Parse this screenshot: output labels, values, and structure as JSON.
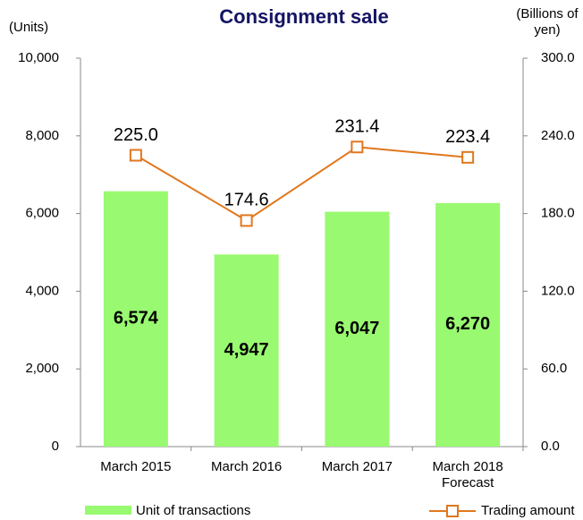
{
  "chart_data": {
    "type": "bar",
    "title": "Consignment sale",
    "y_label": "(Units)",
    "y2_label": "(Billions of yen)",
    "categories": [
      "March 2015",
      "March 2016",
      "March 2017",
      "March 2018 Forecast"
    ],
    "series": [
      {
        "name": "Unit of transactions",
        "type": "bar",
        "color": "#99f970",
        "values": [
          6574,
          4947,
          6047,
          6270
        ],
        "value_labels": [
          "6,574",
          "4,947",
          "6,047",
          "6,270"
        ]
      },
      {
        "name": "Trading amount",
        "type": "line",
        "axis": "y2",
        "color": "#e0771c",
        "values": [
          225.0,
          174.6,
          231.4,
          223.4
        ],
        "value_labels": [
          "225.0",
          "174.6",
          "231.4",
          "223.4"
        ]
      }
    ],
    "ylim": [
      0,
      10000
    ],
    "yticks": [
      0,
      {
        "value": 2000,
        "label": "2,000"
      },
      {
        "value": 4000,
        "label": "4,000"
      },
      {
        "value": 6000,
        "label": "6,000"
      },
      {
        "value": 8000,
        "label": "8,000"
      },
      {
        "value": 10000,
        "label": "10,000"
      }
    ],
    "y2lim": [
      0,
      300
    ],
    "y2ticks": [
      {
        "value": 0,
        "label": "0.0"
      },
      {
        "value": 60,
        "label": "60.0"
      },
      {
        "value": 120,
        "label": "120.0"
      },
      {
        "value": 180,
        "label": "180.0"
      },
      {
        "value": 240,
        "label": "240.0"
      },
      {
        "value": 300,
        "label": "300.0"
      }
    ],
    "grid": false
  }
}
